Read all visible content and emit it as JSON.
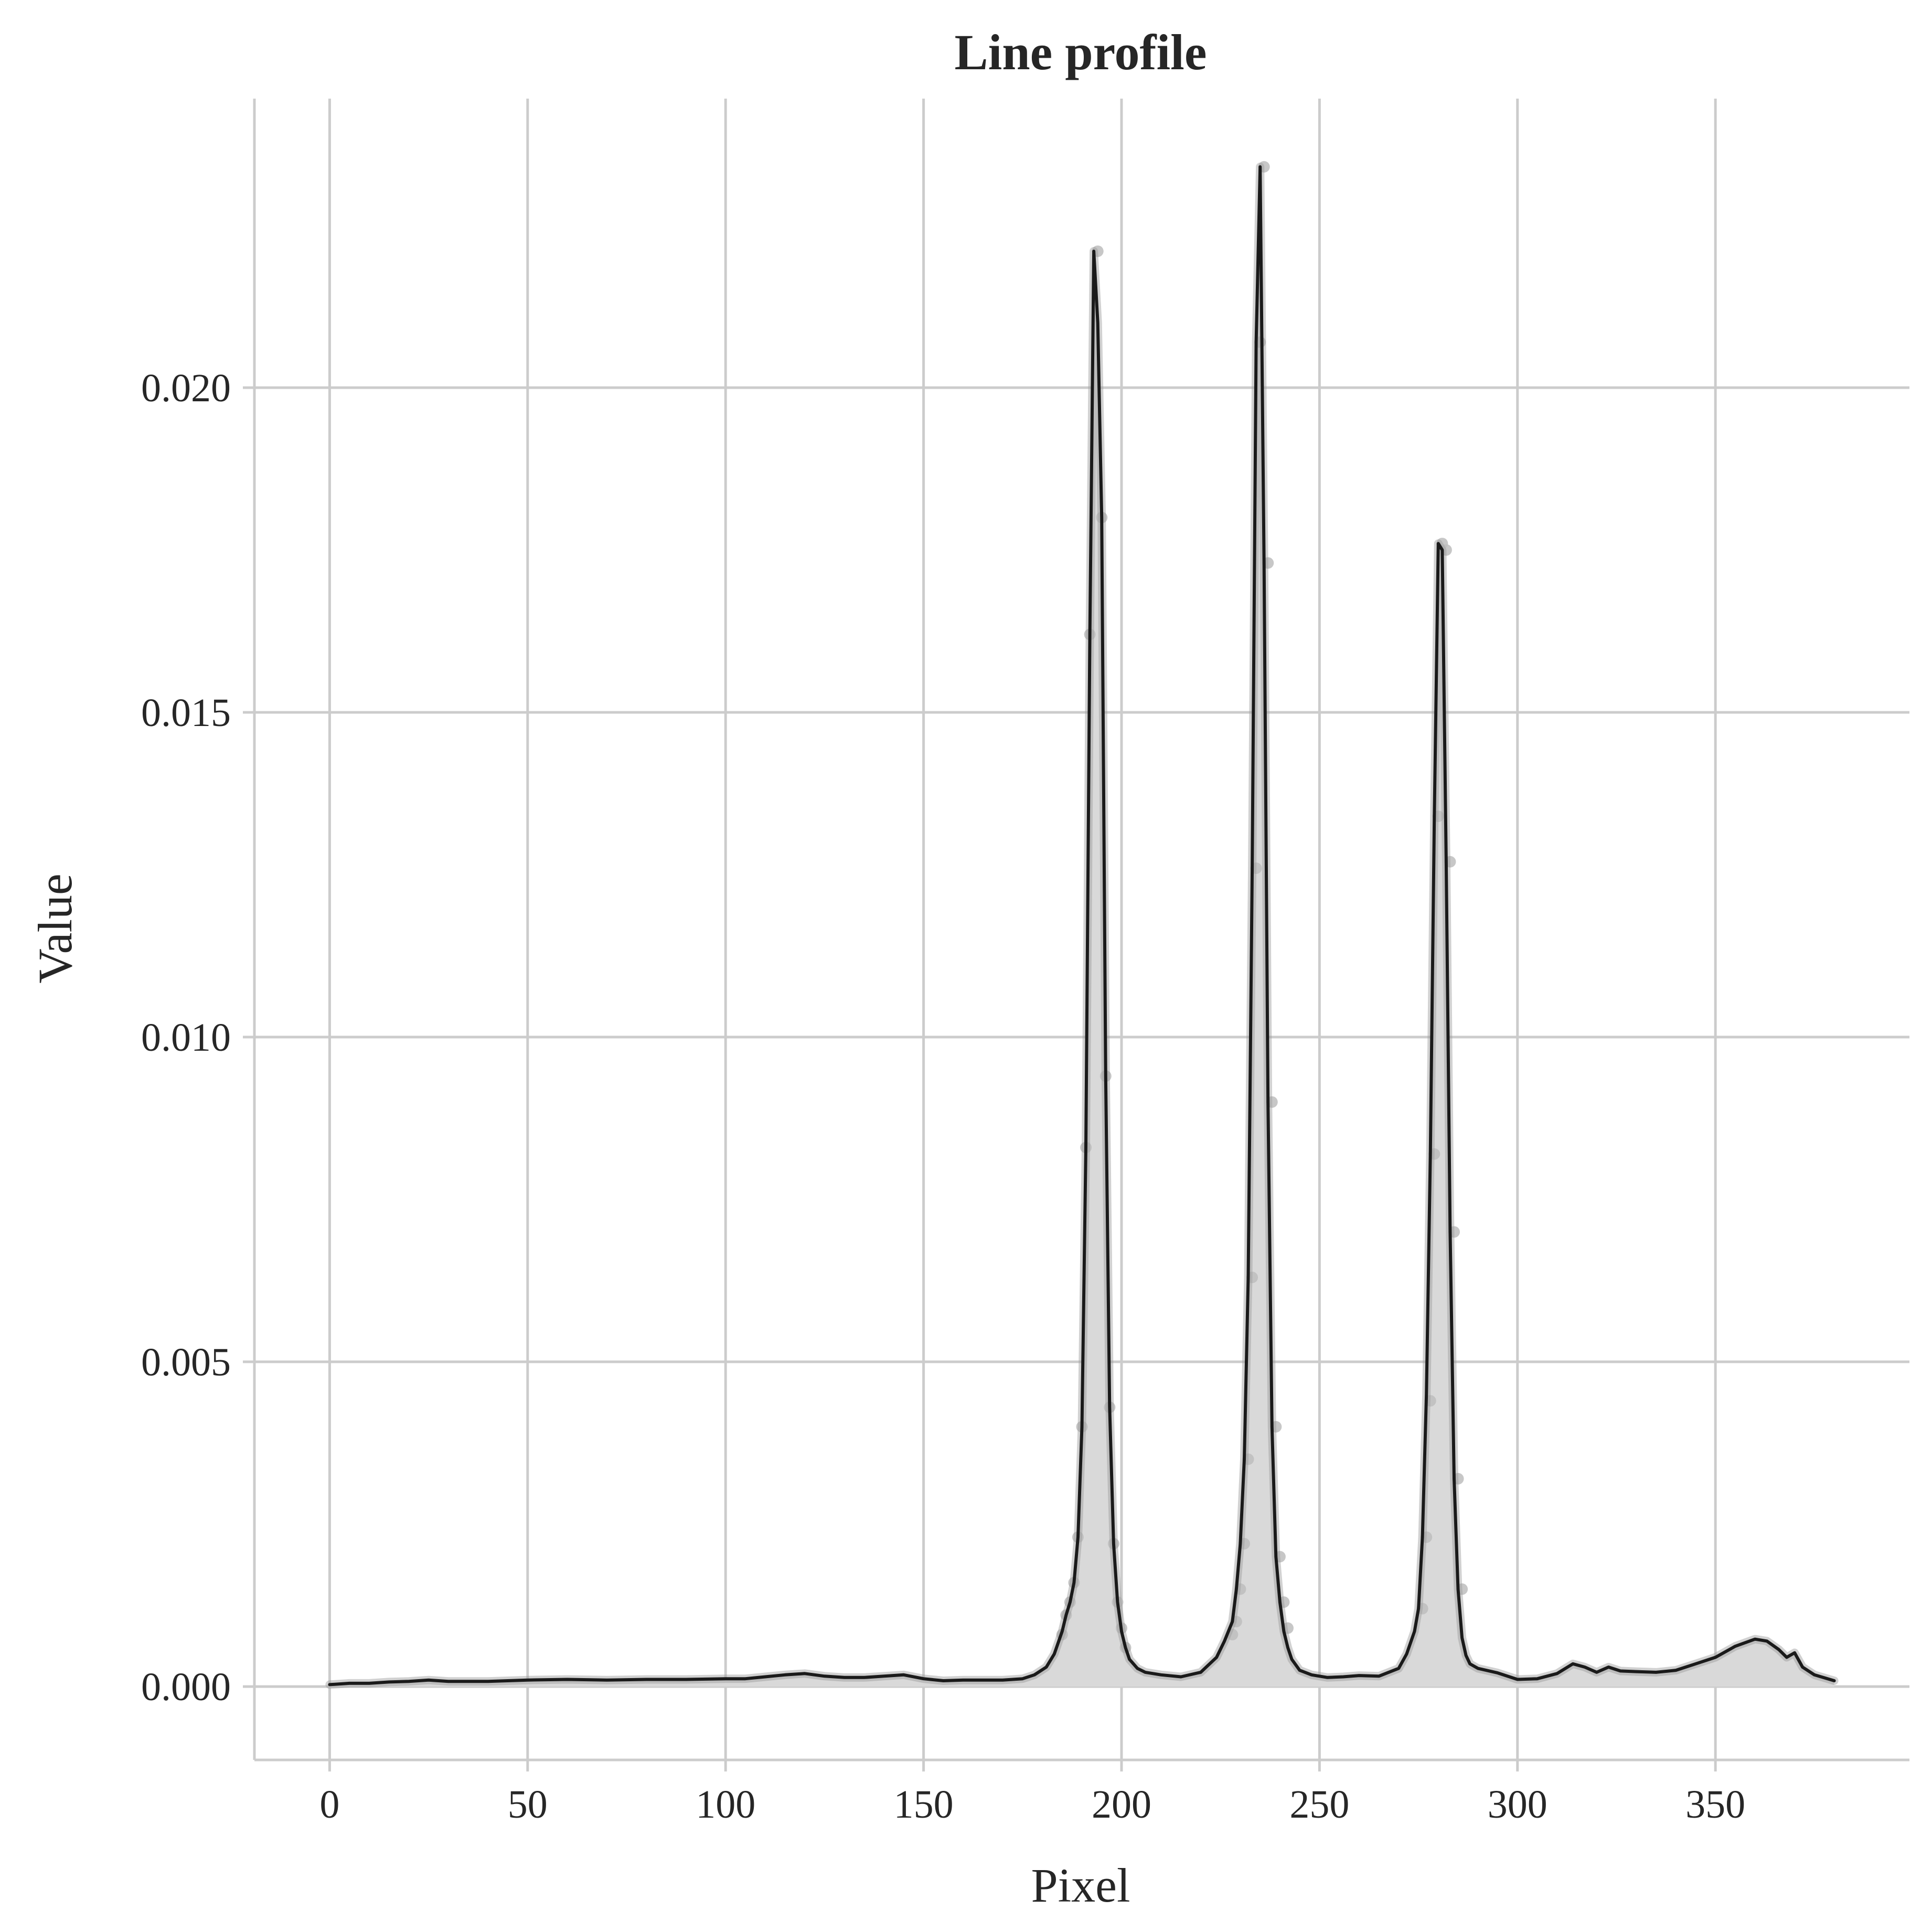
{
  "chart_data": {
    "type": "line",
    "title": "Line profile",
    "xlabel": "Pixel",
    "ylabel": "Value",
    "xlim": [
      -19,
      399
    ],
    "ylim": [
      -0.00113,
      0.02445
    ],
    "xticks": [
      0,
      50,
      100,
      150,
      200,
      250,
      300,
      350
    ],
    "xtick_labels": [
      "0",
      "50",
      "100",
      "150",
      "200",
      "250",
      "300",
      "350"
    ],
    "yticks": [
      0.0,
      0.005,
      0.01,
      0.015,
      0.02
    ],
    "ytick_labels": [
      "0.000",
      "0.005",
      "0.010",
      "0.015",
      "0.020"
    ],
    "grid": true,
    "legend": "none",
    "fill_under_curve": true,
    "colors": {
      "line": "#1a1a1a",
      "fill": "#d9d9d9",
      "points": "#bdbdbd",
      "grid": "#cccccc",
      "axes": "#cccccc",
      "text": "#262626"
    },
    "series": [
      {
        "x": [
          0,
          5,
          10,
          15,
          20,
          25,
          30,
          40,
          50,
          60,
          70,
          80,
          90,
          100,
          105,
          110,
          115,
          120,
          125,
          130,
          135,
          140,
          145,
          150,
          155,
          160,
          165,
          170,
          175,
          178,
          181,
          183,
          185,
          186,
          187,
          188,
          189,
          190,
          191,
          192,
          193,
          194,
          195,
          196,
          197,
          198,
          199,
          200,
          201,
          202,
          204,
          206,
          210,
          215,
          220,
          224,
          226,
          228,
          229,
          230,
          231,
          232,
          233,
          234,
          235,
          236,
          237,
          238,
          239,
          240,
          241,
          242,
          243,
          245,
          248,
          252,
          256,
          260,
          265,
          270,
          272,
          274,
          275,
          276,
          277,
          278,
          279,
          280,
          281,
          282,
          283,
          284,
          285,
          286,
          287,
          288,
          290,
          295,
          300,
          305,
          310,
          314,
          317,
          320,
          323,
          326,
          330,
          335,
          340,
          345,
          350,
          355,
          360,
          363,
          366,
          368,
          370,
          372,
          375,
          380
        ],
        "y": [
          3e-05,
          5e-05,
          5e-05,
          7e-05,
          8e-05,
          0.0001,
          8e-05,
          8e-05,
          0.0001,
          0.00011,
          0.0001,
          0.00011,
          0.00011,
          0.00012,
          0.00012,
          0.00015,
          0.00018,
          0.0002,
          0.00016,
          0.00014,
          0.00014,
          0.00016,
          0.00018,
          0.00012,
          9e-05,
          0.0001,
          0.0001,
          0.0001,
          0.00012,
          0.00018,
          0.0003,
          0.0005,
          0.00085,
          0.0011,
          0.0013,
          0.0016,
          0.0023,
          0.004,
          0.0083,
          0.0162,
          0.0221,
          0.021,
          0.018,
          0.0094,
          0.0043,
          0.0022,
          0.0013,
          0.00085,
          0.0006,
          0.00042,
          0.00028,
          0.00022,
          0.00018,
          0.00015,
          0.00022,
          0.00045,
          0.0007,
          0.001,
          0.0015,
          0.0022,
          0.0035,
          0.0063,
          0.0126,
          0.0207,
          0.0234,
          0.0173,
          0.009,
          0.004,
          0.002,
          0.0013,
          0.00085,
          0.0006,
          0.00042,
          0.00025,
          0.00018,
          0.00014,
          0.00015,
          0.00017,
          0.00016,
          0.00028,
          0.0005,
          0.00085,
          0.0012,
          0.0023,
          0.0045,
          0.0082,
          0.0134,
          0.0176,
          0.0175,
          0.0127,
          0.007,
          0.0032,
          0.0015,
          0.00075,
          0.00048,
          0.00035,
          0.00028,
          0.00021,
          0.00011,
          0.00012,
          0.0002,
          0.00035,
          0.0003,
          0.00022,
          0.0003,
          0.00024,
          0.00023,
          0.00022,
          0.00025,
          0.00035,
          0.00045,
          0.00062,
          0.00073,
          0.0007,
          0.00057,
          0.00045,
          0.00052,
          0.0003,
          0.00018,
          9e-05
        ]
      }
    ],
    "points": {
      "x": [
        185,
        186,
        187,
        188,
        189,
        190,
        191,
        192,
        194,
        195,
        196,
        197,
        198,
        199,
        200,
        201,
        228,
        229,
        230,
        231,
        232,
        233,
        234,
        235,
        236,
        237,
        238,
        239,
        240,
        241,
        242,
        276,
        277,
        278,
        279,
        280,
        281,
        282,
        283,
        284,
        285,
        286
      ],
      "y": [
        0.0008,
        0.0011,
        0.0013,
        0.0016,
        0.0023,
        0.004,
        0.0083,
        0.0162,
        0.0221,
        0.018,
        0.0094,
        0.0043,
        0.0022,
        0.0013,
        0.0009,
        0.0006,
        0.0008,
        0.001,
        0.0015,
        0.0022,
        0.0035,
        0.0063,
        0.0126,
        0.0207,
        0.0234,
        0.0173,
        0.009,
        0.004,
        0.002,
        0.0013,
        0.0009,
        0.0012,
        0.0023,
        0.0044,
        0.0082,
        0.0134,
        0.0176,
        0.0175,
        0.0127,
        0.007,
        0.0032,
        0.0015
      ]
    }
  }
}
